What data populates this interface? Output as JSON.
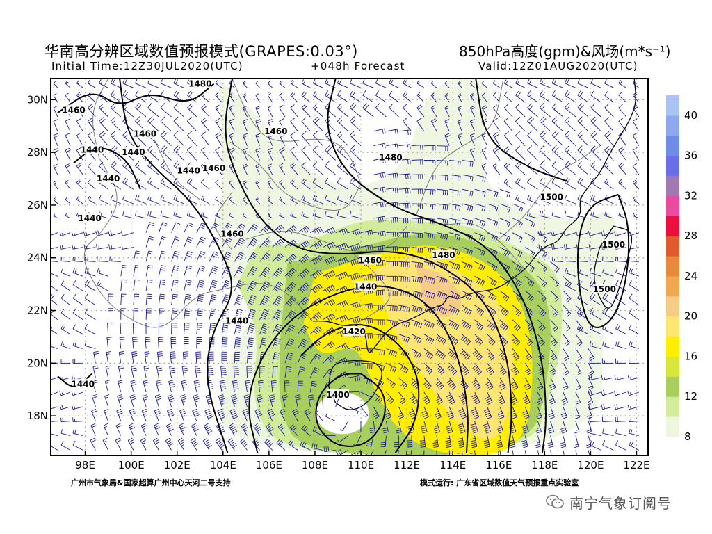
{
  "header": {
    "title_left": "华南高分辨区域数值预报模式(GRAPES:0.03°)",
    "title_right": "850hPa高度(gpm)&风场(m*s⁻¹)",
    "initial_time": "Initial Time:12Z30JUL2020(UTC)",
    "forecast": "+048h Forecast",
    "valid": "Valid:12Z01AUG2020(UTC)"
  },
  "footer": {
    "left": "广州市气象局&国家超算广州中心天河二号支持",
    "right": "模式运行: 广东省区域数值天气预报重点实验室"
  },
  "watermark": {
    "icon": "wechat-icon",
    "text": "南宁气象订阅号"
  },
  "colors": {
    "wind": "#1a1aa0",
    "contour": "#000000",
    "coast": "#000000",
    "border": "#7a7a7a",
    "grid": "#9a9a9a"
  },
  "chart_data": {
    "type": "map",
    "x_label_unit": "E",
    "y_label_unit": "N",
    "xlim": [
      96.5,
      122.5
    ],
    "ylim": [
      16.5,
      30.8
    ],
    "x_ticks": [
      98,
      100,
      102,
      104,
      106,
      108,
      110,
      112,
      114,
      116,
      118,
      120,
      122
    ],
    "x_tick_labels": [
      "98E",
      "100E",
      "102E",
      "104E",
      "106E",
      "108E",
      "110E",
      "112E",
      "114E",
      "116E",
      "118E",
      "120E",
      "122E"
    ],
    "y_ticks": [
      18,
      20,
      22,
      24,
      26,
      28,
      30
    ],
    "y_tick_labels": [
      "18N",
      "20N",
      "22N",
      "24N",
      "26N",
      "28N",
      "30N"
    ],
    "grid": true,
    "contour_levels": [
      1400,
      1420,
      1440,
      1460,
      1480,
      1500
    ],
    "contour_labels": [
      {
        "text": "1480",
        "lon": 103.0,
        "lat": 30.6
      },
      {
        "text": "1460",
        "lon": 97.5,
        "lat": 29.6
      },
      {
        "text": "1460",
        "lon": 100.6,
        "lat": 28.7
      },
      {
        "text": "1440",
        "lon": 98.3,
        "lat": 28.1
      },
      {
        "text": "1440",
        "lon": 100.1,
        "lat": 28.0
      },
      {
        "text": "1440",
        "lon": 102.5,
        "lat": 27.3
      },
      {
        "text": "1460",
        "lon": 103.6,
        "lat": 27.4
      },
      {
        "text": "1460",
        "lon": 106.3,
        "lat": 28.8
      },
      {
        "text": "1440",
        "lon": 99.0,
        "lat": 27.0
      },
      {
        "text": "1440",
        "lon": 98.2,
        "lat": 25.5
      },
      {
        "text": "1460",
        "lon": 104.4,
        "lat": 24.9
      },
      {
        "text": "1480",
        "lon": 111.3,
        "lat": 27.8
      },
      {
        "text": "1500",
        "lon": 118.3,
        "lat": 26.3
      },
      {
        "text": "1500",
        "lon": 121.0,
        "lat": 24.5
      },
      {
        "text": "1500",
        "lon": 120.6,
        "lat": 22.8
      },
      {
        "text": "1460",
        "lon": 110.4,
        "lat": 23.9
      },
      {
        "text": "1480",
        "lon": 113.6,
        "lat": 24.1
      },
      {
        "text": "1440",
        "lon": 110.2,
        "lat": 22.9
      },
      {
        "text": "1440",
        "lon": 104.6,
        "lat": 21.6
      },
      {
        "text": "1420",
        "lon": 109.7,
        "lat": 21.2
      },
      {
        "text": "1400",
        "lon": 109.0,
        "lat": 18.8
      },
      {
        "text": "1440",
        "lon": 97.9,
        "lat": 19.2
      }
    ],
    "wind_speed_colorbar": {
      "unit": "m*s-1",
      "levels": [
        8,
        10,
        12,
        14,
        16,
        18,
        20,
        22,
        24,
        26,
        28,
        30,
        32,
        34,
        36,
        38,
        40,
        42
      ],
      "labels": [
        8,
        12,
        16,
        20,
        24,
        28,
        32,
        36,
        40
      ],
      "colors": [
        "#eef6df",
        "#d3ec9c",
        "#a8ce5e",
        "#d6e63a",
        "#ffee00",
        "#ffe572",
        "#f6cc86",
        "#f0a850",
        "#e8893c",
        "#e05a2c",
        "#ee0e3e",
        "#ec4aa0",
        "#a078b2",
        "#6a6ee8",
        "#6f8de6",
        "#8ea8f0",
        "#a9c4f4"
      ]
    },
    "wind_shading": [
      {
        "lon": 113.3,
        "lat": 21.2,
        "rx": 3.6,
        "ry": 3.4,
        "speed": 10
      },
      {
        "lon": 112.6,
        "lat": 21.7,
        "rx": 2.9,
        "ry": 2.7,
        "speed": 12
      },
      {
        "lon": 112.9,
        "lat": 21.7,
        "rx": 2.1,
        "ry": 2.0,
        "speed": 16
      },
      {
        "lon": 113.0,
        "lat": 22.0,
        "rx": 1.3,
        "ry": 1.2,
        "speed": 20
      },
      {
        "lon": 109.4,
        "lat": 18.6,
        "rx": 3.0,
        "ry": 2.5,
        "speed": 12
      },
      {
        "lon": 109.4,
        "lat": 18.6,
        "rx": 1.2,
        "ry": 1.1,
        "speed": 8
      }
    ],
    "low_center": {
      "lon": 109.2,
      "lat": 18.1
    }
  }
}
